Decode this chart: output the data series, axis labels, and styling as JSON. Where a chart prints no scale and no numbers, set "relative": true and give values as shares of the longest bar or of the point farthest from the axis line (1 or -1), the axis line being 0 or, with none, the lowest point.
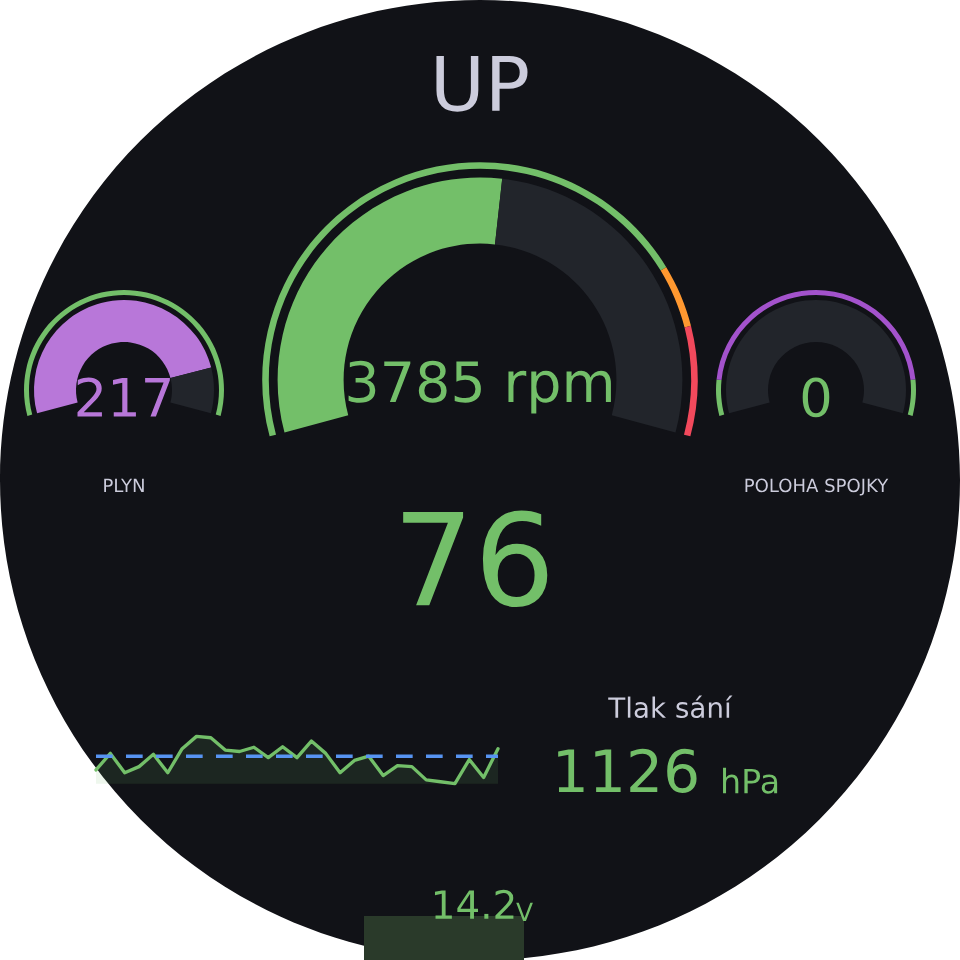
{
  "chart_data": [
    {
      "type": "donut",
      "title": "UP",
      "annotations": [
        "3785 rpm"
      ],
      "categories": [
        null,
        null,
        null
      ],
      "series": [
        {
          "values": [
            53,
            47,
            null
          ],
          "colors": [
            "#73bf69",
            "#22252b",
            "#22252b"
          ]
        },
        {
          "values": [
            78,
            8,
            14
          ],
          "colors": [
            "#73bf69",
            "#ff9830",
            "#f2495c"
          ]
        }
      ]
    },
    {
      "type": "donut",
      "xlabel": "PLYN",
      "annotations": [
        "217"
      ],
      "categories": [
        null,
        null
      ],
      "series": [
        {
          "values": [
            86,
            14
          ],
          "colors": [
            "#b877d9",
            "#22252b"
          ]
        },
        {
          "values": [
            100,
            null
          ],
          "colors": [
            "#73bf69",
            "#73bf69"
          ]
        }
      ]
    },
    {
      "type": "donut",
      "xlabel": "POLOHA SPOJKY",
      "annotations": [
        "0"
      ],
      "categories": [
        null,
        null,
        null
      ],
      "series": [
        {
          "values": [
            0,
            100,
            null
          ],
          "colors": [
            "#b877d9",
            "#22252b",
            "#22252b"
          ]
        },
        {
          "values": [
            10,
            80,
            10
          ],
          "colors": [
            "#73bf69",
            "#a352cc",
            "#73bf69"
          ]
        }
      ]
    },
    {
      "type": "other",
      "annotations": [
        "76"
      ]
    },
    {
      "type": "area",
      "relative": true,
      "categories": [
        null,
        null,
        null,
        null,
        null,
        null,
        null,
        null,
        null,
        null,
        null,
        null,
        null,
        null,
        null,
        null,
        null,
        null,
        null,
        null,
        null,
        null,
        null,
        null,
        null,
        null,
        null,
        null,
        null
      ],
      "series": [
        {
          "color": "#73bf69",
          "values": [
            0.29,
            0.64,
            0.23,
            0.36,
            0.62,
            0.23,
            0.74,
            1,
            0.97,
            0.71,
            0.68,
            0.77,
            0.55,
            0.78,
            0.55,
            0.9,
            0.64,
            0.23,
            0.49,
            0.58,
            0.17,
            0.38,
            0.36,
            0.08,
            0.04,
            0,
            0.51,
            0.13,
            0.74
          ]
        }
      ],
      "ref_lines": [
        {
          "axis": "y",
          "value": 0.58,
          "color": "#5794f2",
          "line_style": "dashed"
        }
      ]
    },
    {
      "type": "other",
      "title": "Tlak sání",
      "annotations": [
        "1126",
        "hPa"
      ]
    },
    {
      "type": "other",
      "annotations": [
        "14.2",
        "V"
      ]
    }
  ]
}
